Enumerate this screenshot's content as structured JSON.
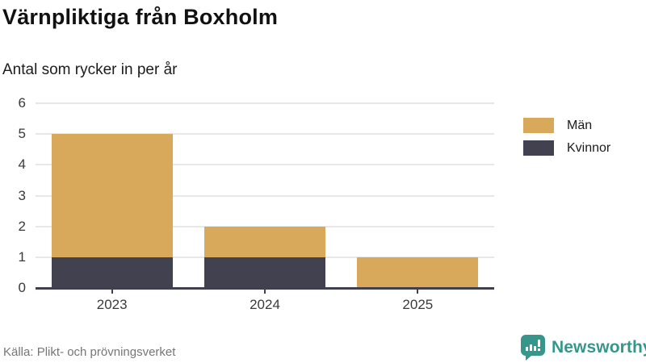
{
  "header": {
    "title": "Värnpliktiga från Boxholm",
    "subtitle": "Antal som rycker in per år"
  },
  "footer": {
    "source": "Källa: Plikt- och prövningsverket",
    "branding": {
      "logo_text": "Newsworthy",
      "logo_icon": "bar-chart-speech-bubble-icon",
      "logo_color": "#36968b"
    }
  },
  "colors": {
    "man_bar": "#d9a95b",
    "kvinnor_bar": "#41414f",
    "gridline": "#e7e7e7",
    "axis": "#3f3f4d",
    "tick_text": "#3a3a3a",
    "source_text": "#767676"
  },
  "chart_data": {
    "type": "bar",
    "stacked": true,
    "title": "Värnpliktiga från Boxholm",
    "subtitle": "Antal som rycker in per år",
    "categories": [
      "2023",
      "2024",
      "2025"
    ],
    "series": [
      {
        "name": "Män",
        "color": "#d9a95b",
        "values": [
          4,
          1,
          1
        ]
      },
      {
        "name": "Kvinnor",
        "color": "#41414f",
        "values": [
          1,
          1,
          0
        ]
      }
    ],
    "totals": [
      5,
      2,
      1
    ],
    "xlabel": "",
    "ylabel": "",
    "ylim": [
      0,
      6
    ],
    "yticks": [
      0,
      1,
      2,
      3,
      4,
      5,
      6
    ],
    "grid": true,
    "legend_position": "right"
  }
}
